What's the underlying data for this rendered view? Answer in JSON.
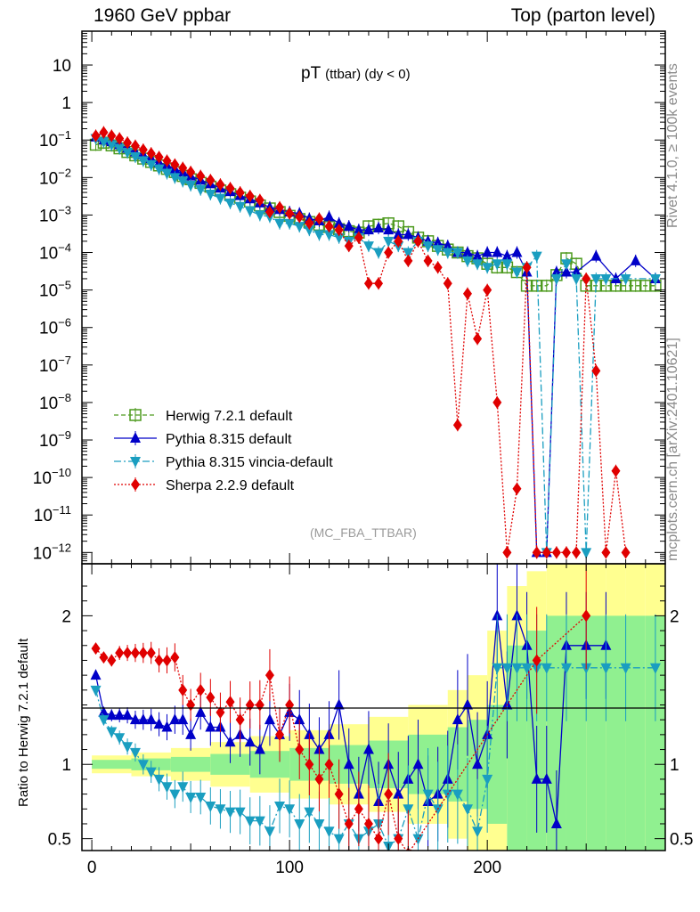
{
  "header": {
    "left": "1960 GeV ppbar",
    "right": "Top (parton level)"
  },
  "side": {
    "rivet": "Rivet 4.1.0, ≥ 100k events",
    "mcplots": "mcplots.cern.ch [arXiv:2401.10621]"
  },
  "colors": {
    "herwig": "#4d9a1e",
    "pythia": "#0000c8",
    "vincia": "#1a9ec0",
    "sherpa": "#e00000",
    "band_inner": "#90f090",
    "band_outer": "#ffff90"
  },
  "chart_data": [
    {
      "type": "line",
      "panel": "main",
      "title": "pT",
      "title_sub": "(ttbar) (dy < 0)",
      "analysis": "(MC_FBA_TTBAR)",
      "xlabel": "",
      "ylabel": "",
      "xlim": [
        -5,
        290
      ],
      "ylim": [
        5e-13,
        80
      ],
      "yscale": "log",
      "ytick_labels": [
        {
          "value": 10,
          "mant": "10",
          "exp": ""
        },
        {
          "value": 1,
          "mant": "1",
          "exp": ""
        },
        {
          "value": 0.1,
          "mant": "10",
          "exp": "−1"
        },
        {
          "value": 0.01,
          "mant": "10",
          "exp": "−2"
        },
        {
          "value": 0.001,
          "mant": "10",
          "exp": "−3"
        },
        {
          "value": 0.0001,
          "mant": "10",
          "exp": "−4"
        },
        {
          "value": 1e-05,
          "mant": "10",
          "exp": "−5"
        },
        {
          "value": 1e-06,
          "mant": "10",
          "exp": "−6"
        },
        {
          "value": 1e-07,
          "mant": "10",
          "exp": "−7"
        },
        {
          "value": 1e-08,
          "mant": "10",
          "exp": "−8"
        },
        {
          "value": 1e-09,
          "mant": "10",
          "exp": "−9"
        },
        {
          "value": 1e-10,
          "mant": "10",
          "exp": "−10"
        },
        {
          "value": 1e-11,
          "mant": "10",
          "exp": "−11"
        },
        {
          "value": 1e-12,
          "mant": "10",
          "exp": "−12"
        }
      ],
      "legend_position": "bottom-left",
      "series": [
        {
          "name": "Herwig 7.2.1 default",
          "key": "herwig",
          "marker": "open-square",
          "style": "dashed",
          "x": [
            2,
            6,
            10,
            14,
            18,
            22,
            26,
            30,
            34,
            38,
            42,
            46,
            50,
            55,
            60,
            65,
            70,
            75,
            80,
            85,
            90,
            95,
            100,
            105,
            110,
            115,
            120,
            125,
            130,
            135,
            140,
            145,
            150,
            155,
            160,
            165,
            170,
            175,
            180,
            185,
            190,
            195,
            200,
            205,
            210,
            215,
            220,
            225,
            230,
            235,
            240,
            245,
            250,
            255,
            260,
            265,
            270,
            275,
            280,
            285
          ],
          "y": [
            0.075,
            0.085,
            0.072,
            0.06,
            0.048,
            0.039,
            0.032,
            0.026,
            0.021,
            0.017,
            0.014,
            0.011,
            0.009,
            0.0072,
            0.0057,
            0.0045,
            0.0036,
            0.0029,
            0.0023,
            0.0018,
            0.0015,
            0.0012,
            0.00095,
            0.00078,
            0.00065,
            0.00055,
            0.00048,
            0.00042,
            0.00037,
            0.00034,
            0.0005,
            0.00055,
            0.0006,
            0.0005,
            0.00035,
            0.00025,
            0.0002,
            0.00015,
            0.00012,
            0.0001,
            8e-05,
            7e-05,
            5e-05,
            4e-05,
            4e-05,
            3e-05,
            1.3e-05,
            1.3e-05,
            1.3e-05,
            2.5e-05,
            7e-05,
            5e-05,
            1.3e-05,
            1.3e-05,
            1.3e-05,
            1.3e-05,
            1.3e-05,
            1.3e-05,
            1.3e-05,
            1.3e-05
          ]
        },
        {
          "name": "Pythia 8.315 default",
          "key": "pythia",
          "marker": "triangle-up",
          "style": "solid",
          "x": [
            2,
            6,
            10,
            14,
            18,
            22,
            26,
            30,
            34,
            38,
            42,
            46,
            50,
            55,
            60,
            65,
            70,
            75,
            80,
            85,
            90,
            95,
            100,
            105,
            110,
            115,
            120,
            125,
            130,
            135,
            140,
            145,
            150,
            155,
            160,
            165,
            170,
            175,
            180,
            185,
            190,
            195,
            200,
            205,
            210,
            215,
            220,
            225,
            230,
            235,
            240,
            245,
            255,
            265,
            275,
            285
          ],
          "y": [
            0.12,
            0.1,
            0.09,
            0.075,
            0.06,
            0.048,
            0.04,
            0.032,
            0.025,
            0.021,
            0.017,
            0.014,
            0.011,
            0.0085,
            0.0068,
            0.0052,
            0.0042,
            0.0033,
            0.0027,
            0.0021,
            0.0016,
            0.0014,
            0.0012,
            0.0011,
            0.0008,
            0.0007,
            0.0009,
            0.0006,
            0.0005,
            0.0004,
            0.0004,
            0.00045,
            0.0004,
            0.0003,
            0.0003,
            0.00025,
            0.0002,
            0.00018,
            0.00015,
            0.0001,
            0.0001,
            8e-05,
            0.0001,
            0.0001,
            8e-05,
            0.0001,
            3e-05,
            1e-12,
            1e-12,
            3e-05,
            3e-05,
            3e-05,
            8e-05,
            2e-05,
            6e-05,
            2e-05
          ]
        },
        {
          "name": "Pythia 8.315 vincia-default",
          "key": "vincia",
          "marker": "triangle-down",
          "style": "dashdot",
          "x": [
            2,
            6,
            10,
            14,
            18,
            22,
            26,
            30,
            34,
            38,
            42,
            46,
            50,
            55,
            60,
            65,
            70,
            75,
            80,
            85,
            90,
            95,
            100,
            105,
            110,
            115,
            120,
            125,
            130,
            135,
            140,
            145,
            150,
            155,
            160,
            165,
            170,
            175,
            180,
            185,
            190,
            195,
            200,
            205,
            210,
            215,
            220,
            225,
            230,
            235,
            240,
            245,
            250,
            255,
            260,
            270,
            285
          ],
          "y": [
            0.11,
            0.09,
            0.075,
            0.06,
            0.047,
            0.036,
            0.028,
            0.022,
            0.017,
            0.013,
            0.01,
            0.008,
            0.0062,
            0.0048,
            0.0036,
            0.0028,
            0.0021,
            0.0017,
            0.0013,
            0.001,
            0.0009,
            0.0006,
            0.0006,
            0.0005,
            0.0004,
            0.0003,
            0.0003,
            0.00025,
            0.0002,
            0.00025,
            0.00015,
            0.0001,
            0.0002,
            0.00015,
            0.0001,
            0.0002,
            0.00015,
            0.00012,
            0.0001,
            0.0001,
            6e-05,
            5e-05,
            4e-05,
            5e-05,
            5e-05,
            3e-05,
            4e-05,
            8e-05,
            1e-12,
            2e-05,
            5e-05,
            2e-05,
            1e-12,
            2e-05,
            2e-05,
            2e-05,
            2e-05
          ]
        },
        {
          "name": "Sherpa 2.2.9 default",
          "key": "sherpa",
          "marker": "diamond",
          "style": "dotted",
          "x": [
            2,
            6,
            10,
            14,
            18,
            22,
            26,
            30,
            34,
            38,
            42,
            46,
            50,
            55,
            60,
            65,
            70,
            75,
            80,
            85,
            90,
            95,
            100,
            105,
            110,
            115,
            120,
            125,
            130,
            135,
            140,
            145,
            150,
            155,
            160,
            165,
            170,
            175,
            180,
            185,
            190,
            195,
            200,
            205,
            210,
            215,
            220,
            225,
            230,
            235,
            240,
            245,
            250,
            255,
            260,
            265,
            270
          ],
          "y": [
            0.13,
            0.16,
            0.13,
            0.11,
            0.085,
            0.07,
            0.055,
            0.044,
            0.035,
            0.028,
            0.022,
            0.018,
            0.014,
            0.011,
            0.0085,
            0.0065,
            0.0052,
            0.004,
            0.0032,
            0.0025,
            0.0012,
            0.0016,
            0.0011,
            0.0009,
            0.0006,
            0.0008,
            0.0005,
            0.0004,
            0.00015,
            0.00025,
            1.5e-05,
            1.5e-05,
            0.0001,
            0.0002,
            6e-05,
            0.0002,
            6e-05,
            4e-05,
            1.5e-05,
            2.5e-09,
            8e-06,
            5e-07,
            1e-05,
            1e-08,
            1e-12,
            5e-11,
            4e-05,
            1e-12,
            1e-12,
            1e-12,
            1e-12,
            1e-12,
            2e-05,
            7e-08,
            1e-12,
            1.5e-10,
            1e-12
          ]
        }
      ]
    },
    {
      "type": "line",
      "panel": "ratio",
      "xlabel": "",
      "ylabel": "Ratio to Herwig 7.2.1 default",
      "xlim": [
        -5,
        290
      ],
      "ylim": [
        0.42,
        2.35
      ],
      "xtick_labels": [
        "0",
        "100",
        "200"
      ],
      "xticks": [
        0,
        100,
        200
      ],
      "ytick_labels": [
        "0.5",
        "1",
        "2"
      ],
      "yticks": [
        0.5,
        1,
        2
      ],
      "reference_line": 1,
      "band_x": [
        0,
        20,
        40,
        60,
        80,
        100,
        120,
        140,
        160,
        180,
        190,
        200,
        210,
        220,
        230,
        240,
        250,
        260,
        270,
        280,
        290
      ],
      "band_inner": [
        0.03,
        0.04,
        0.05,
        0.07,
        0.09,
        0.11,
        0.13,
        0.16,
        0.2,
        0.25,
        0.3,
        0.4,
        0.8,
        0.9,
        1.0,
        1.0,
        1.0,
        1.0,
        1.0,
        1.0
      ],
      "band_outer": [
        0.06,
        0.08,
        0.11,
        0.15,
        0.19,
        0.23,
        0.27,
        0.32,
        0.4,
        0.5,
        0.6,
        0.9,
        1.2,
        1.3,
        1.4,
        1.4,
        1.4,
        1.4,
        1.4,
        1.4
      ],
      "series": [
        {
          "key": "pythia",
          "marker": "triangle-up",
          "x": [
            2,
            6,
            10,
            14,
            18,
            22,
            26,
            30,
            34,
            38,
            42,
            46,
            50,
            55,
            60,
            65,
            70,
            75,
            80,
            85,
            90,
            95,
            100,
            105,
            110,
            115,
            120,
            125,
            130,
            135,
            140,
            145,
            150,
            155,
            160,
            165,
            170,
            175,
            180,
            185,
            190,
            195,
            200,
            205,
            210,
            215,
            220,
            225,
            230,
            235,
            240,
            250,
            260
          ],
          "y": [
            1.6,
            1.35,
            1.33,
            1.33,
            1.33,
            1.3,
            1.3,
            1.3,
            1.27,
            1.25,
            1.3,
            1.3,
            1.2,
            1.35,
            1.25,
            1.25,
            1.15,
            1.2,
            1.15,
            1.1,
            1.3,
            1.2,
            1.35,
            1.3,
            1.2,
            1.1,
            1.2,
            1.4,
            1.0,
            0.8,
            1.1,
            0.75,
            1.0,
            0.8,
            0.9,
            1.0,
            0.75,
            0.8,
            0.9,
            1.3,
            1.4,
            1.0,
            1.2,
            2.0,
            1.4,
            2.0,
            1.8,
            0.9,
            0.9,
            0.6,
            1.8,
            1.8,
            1.8
          ]
        },
        {
          "key": "vincia",
          "marker": "triangle-down",
          "x": [
            2,
            6,
            10,
            14,
            18,
            22,
            26,
            30,
            34,
            38,
            42,
            46,
            50,
            55,
            60,
            65,
            70,
            75,
            80,
            85,
            90,
            95,
            100,
            105,
            110,
            115,
            120,
            125,
            130,
            135,
            140,
            145,
            150,
            155,
            160,
            165,
            170,
            175,
            180,
            185,
            190,
            195,
            200,
            205,
            210,
            215,
            220,
            225,
            230,
            240,
            250,
            260,
            270,
            285
          ],
          "y": [
            1.5,
            1.3,
            1.22,
            1.18,
            1.12,
            1.08,
            1.0,
            0.95,
            0.9,
            0.85,
            0.8,
            0.85,
            0.78,
            0.78,
            0.72,
            0.7,
            0.68,
            0.68,
            0.62,
            0.62,
            0.55,
            0.72,
            0.7,
            0.6,
            0.68,
            0.6,
            0.55,
            0.5,
            0.6,
            0.5,
            0.55,
            0.6,
            0.45,
            0.5,
            0.7,
            0.5,
            0.8,
            0.7,
            0.8,
            0.8,
            0.7,
            0.55,
            0.9,
            1.65,
            1.65,
            1.65,
            1.65,
            1.65,
            1.65,
            1.65,
            1.65,
            1.65,
            1.65,
            1.65
          ]
        },
        {
          "key": "sherpa",
          "marker": "diamond",
          "x": [
            2,
            6,
            10,
            14,
            18,
            22,
            26,
            30,
            34,
            38,
            42,
            46,
            50,
            55,
            60,
            65,
            70,
            75,
            80,
            85,
            90,
            95,
            100,
            105,
            110,
            115,
            120,
            125,
            130,
            135,
            140,
            145,
            150,
            155,
            160,
            225,
            250
          ],
          "y": [
            1.78,
            1.72,
            1.7,
            1.75,
            1.75,
            1.75,
            1.75,
            1.75,
            1.7,
            1.7,
            1.72,
            1.5,
            1.4,
            1.5,
            1.45,
            1.35,
            1.42,
            1.3,
            1.4,
            1.4,
            1.6,
            1.2,
            1.4,
            1.1,
            1.0,
            0.9,
            1.0,
            0.8,
            0.6,
            0.7,
            0.6,
            0.5,
            0.8,
            0.5,
            0.4,
            1.7,
            2.0
          ]
        }
      ]
    }
  ]
}
